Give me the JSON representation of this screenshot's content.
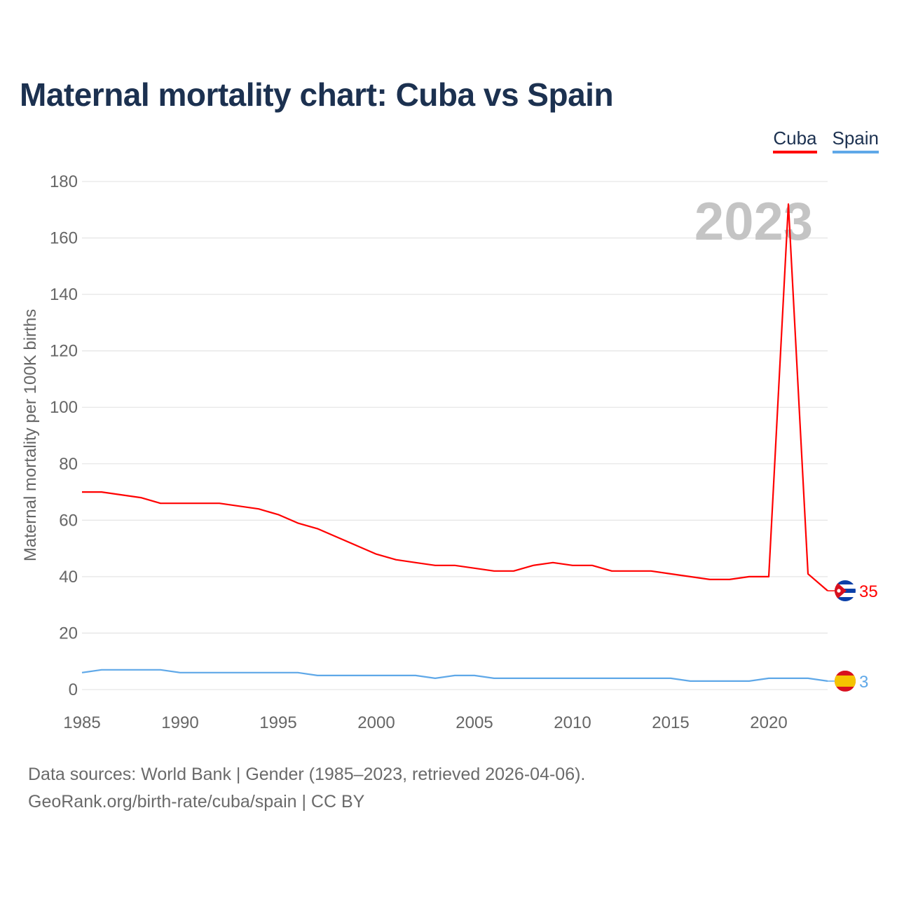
{
  "title": "Maternal mortality chart: Cuba vs Spain",
  "legend": {
    "cuba": "Cuba",
    "spain": "Spain"
  },
  "footer": {
    "line1": "Data sources: World Bank | Gender (1985–2023, retrieved 2026-04-06).",
    "line2": "GeoRank.org/birth-rate/cuba/spain | CC BY"
  },
  "year_watermark": "2023",
  "colors": {
    "cuba": "#ff0000",
    "spain": "#5fa8e8",
    "title": "#1c3150",
    "grid": "#e6e6e6",
    "axis_text": "#666666",
    "watermark": "#c4c4c4"
  },
  "chart_data": {
    "type": "line",
    "title": "Maternal mortality chart: Cuba vs Spain",
    "xlabel": "",
    "ylabel": "Maternal mortality per 100K births",
    "xlim": [
      1985,
      2023
    ],
    "ylim": [
      0,
      180
    ],
    "x_ticks": [
      1985,
      1990,
      1995,
      2000,
      2005,
      2010,
      2015,
      2020
    ],
    "y_ticks": [
      0,
      20,
      40,
      60,
      80,
      100,
      120,
      140,
      160,
      180
    ],
    "grid": true,
    "legend_position": "top-right",
    "x": [
      1985,
      1986,
      1987,
      1988,
      1989,
      1990,
      1991,
      1992,
      1993,
      1994,
      1995,
      1996,
      1997,
      1998,
      1999,
      2000,
      2001,
      2002,
      2003,
      2004,
      2005,
      2006,
      2007,
      2008,
      2009,
      2010,
      2011,
      2012,
      2013,
      2014,
      2015,
      2016,
      2017,
      2018,
      2019,
      2020,
      2021,
      2022,
      2023
    ],
    "series": [
      {
        "name": "Cuba",
        "color": "#ff0000",
        "end_label": "35",
        "values": [
          70,
          70,
          69,
          68,
          66,
          66,
          66,
          66,
          65,
          64,
          62,
          59,
          57,
          54,
          51,
          48,
          46,
          45,
          44,
          44,
          43,
          42,
          42,
          44,
          45,
          44,
          44,
          42,
          42,
          42,
          41,
          40,
          39,
          39,
          40,
          40,
          172,
          41,
          35
        ]
      },
      {
        "name": "Spain",
        "color": "#5fa8e8",
        "end_label": "3",
        "values": [
          6,
          7,
          7,
          7,
          7,
          6,
          6,
          6,
          6,
          6,
          6,
          6,
          5,
          5,
          5,
          5,
          5,
          5,
          4,
          5,
          5,
          4,
          4,
          4,
          4,
          4,
          4,
          4,
          4,
          4,
          4,
          3,
          3,
          3,
          3,
          4,
          4,
          4,
          3
        ]
      }
    ]
  }
}
